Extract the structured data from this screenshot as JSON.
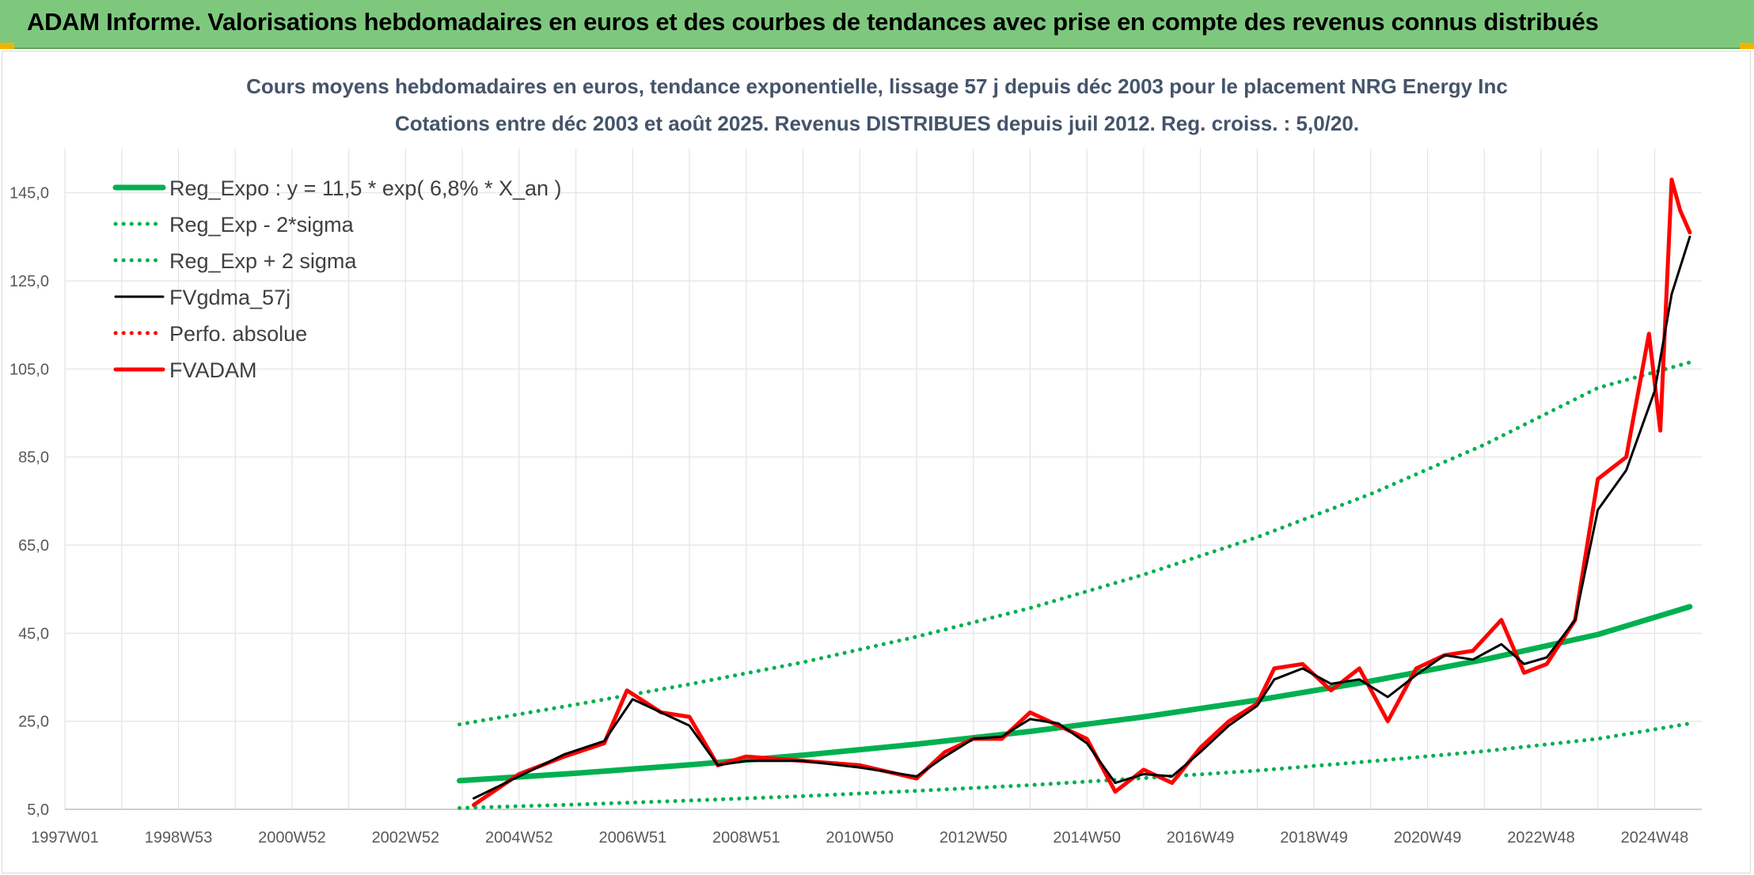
{
  "header": {
    "title": "ADAM Informe. Valorisations hebdomadaires en euros et des courbes de tendances avec prise en compte des revenus connus distribués"
  },
  "colors": {
    "banner": "#7ec87e",
    "green": "#00b050",
    "black": "#000000",
    "red": "#ff0000",
    "title_text": "#44546a"
  },
  "chart_data": {
    "type": "line",
    "title": "Cours moyens hebdomadaires en euros, tendance exponentielle, lissage 57 j depuis déc 2003 pour le placement NRG Energy Inc",
    "subtitle": "Cotations entre déc 2003 et août 2025. Revenus DISTRIBUES depuis juil 2012. Reg. croiss. : 5,0/20.",
    "xlabel": "",
    "ylabel": "",
    "x_tick_labels": [
      "1997W01",
      "1998W53",
      "2000W52",
      "2002W52",
      "2004W52",
      "2006W51",
      "2008W51",
      "2010W50",
      "2012W50",
      "2014W50",
      "2016W49",
      "2018W49",
      "2020W49",
      "2022W48",
      "2024W48"
    ],
    "y_tick_labels": [
      "5,0",
      "25,0",
      "45,0",
      "65,0",
      "85,0",
      "105,0",
      "125,0",
      "145,0"
    ],
    "ylim": [
      5,
      155
    ],
    "xlim": [
      1997.0,
      2025.83
    ],
    "grid": true,
    "legend_position": "top-left",
    "series": [
      {
        "name": "Reg_Expo : y = 11,5 * exp( 6,8% *  X_an )",
        "color": "#00b050",
        "style": "solid",
        "x": [
          2003.95,
          2006,
          2008,
          2010,
          2012,
          2014,
          2016,
          2018,
          2020,
          2022,
          2024,
          2025.62
        ],
        "y": [
          11.5,
          13.2,
          15.1,
          17.3,
          19.8,
          22.7,
          26.0,
          29.8,
          34.1,
          39.0,
          44.7,
          51.0
        ]
      },
      {
        "name": "Reg_Exp - 2*sigma",
        "color": "#00b050",
        "style": "dotted",
        "x": [
          2003.95,
          2006,
          2008,
          2010,
          2012,
          2014,
          2016,
          2018,
          2020,
          2022,
          2024,
          2025.62
        ],
        "y": [
          5.3,
          6.1,
          7.0,
          8.0,
          9.2,
          10.5,
          12.1,
          13.8,
          15.9,
          18.2,
          21.0,
          24.5
        ]
      },
      {
        "name": "Reg_Exp + 2 sigma",
        "color": "#00b050",
        "style": "dotted",
        "x": [
          2003.95,
          2006,
          2008,
          2010,
          2012,
          2014,
          2016,
          2018,
          2020,
          2022,
          2024,
          2025.62
        ],
        "y": [
          24.3,
          28.8,
          33.4,
          38.4,
          44.2,
          50.7,
          58.3,
          66.8,
          76.6,
          87.8,
          100.7,
          106.5
        ]
      },
      {
        "name": "FVgdma_57j",
        "color": "#000000",
        "style": "solid",
        "x": [
          2004.2,
          2005,
          2005.8,
          2006.5,
          2007,
          2007.5,
          2008,
          2008.5,
          2009,
          2010,
          2011,
          2012,
          2012.5,
          2013,
          2013.5,
          2014,
          2014.5,
          2015,
          2015.5,
          2016,
          2016.5,
          2017,
          2017.5,
          2018,
          2018.3,
          2018.8,
          2019.3,
          2019.8,
          2020.3,
          2020.8,
          2021.3,
          2021.8,
          2022.3,
          2022.7,
          2023.1,
          2023.6,
          2024,
          2024.5,
          2025,
          2025.3,
          2025.62
        ],
        "y": [
          7.5,
          12.5,
          17.5,
          20.5,
          30,
          27,
          24,
          15,
          16,
          16,
          14.5,
          12.5,
          17,
          21,
          21.5,
          25.5,
          24.5,
          20,
          11,
          13,
          12.5,
          18,
          24,
          28.5,
          34.5,
          37,
          33.5,
          34.5,
          30.5,
          35.5,
          40,
          39,
          42.5,
          38,
          39.5,
          48,
          73,
          82,
          100,
          122,
          135
        ]
      },
      {
        "name": "Perfo. absolue",
        "color": "#ff0000",
        "style": "dotted",
        "x": [],
        "y": []
      },
      {
        "name": "FVADAM",
        "color": "#ff0000",
        "style": "solid",
        "x": [
          2004.2,
          2005,
          2005.8,
          2006.5,
          2006.9,
          2007.5,
          2008,
          2008.5,
          2009,
          2010,
          2011,
          2012,
          2012.5,
          2013,
          2013.5,
          2014,
          2014.5,
          2015,
          2015.5,
          2016,
          2016.5,
          2017,
          2017.5,
          2018,
          2018.3,
          2018.8,
          2019.3,
          2019.8,
          2020.3,
          2020.8,
          2021.3,
          2021.8,
          2022.3,
          2022.7,
          2023.1,
          2023.6,
          2024,
          2024.5,
          2024.9,
          2025.1,
          2025.3,
          2025.45,
          2025.62
        ],
        "y": [
          6,
          13,
          17,
          20,
          32,
          27,
          26,
          15,
          17,
          16,
          15,
          12,
          18,
          21,
          21,
          27,
          24,
          21,
          9,
          14,
          11,
          19,
          25,
          29,
          37,
          38,
          32,
          37,
          25,
          37,
          40,
          41,
          48,
          36,
          38,
          48,
          80,
          85,
          113,
          91,
          148,
          141,
          136
        ]
      }
    ]
  }
}
